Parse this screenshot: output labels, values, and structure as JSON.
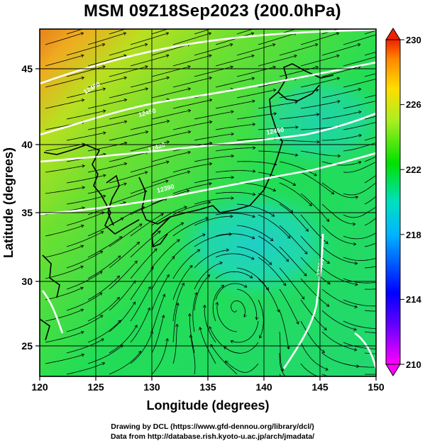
{
  "title": "MSM 09Z18Sep2023 (200.0hPa)",
  "map": {
    "lon_range": [
      120,
      150
    ],
    "lat_range": [
      22.5,
      47.5
    ],
    "x_ticks": [
      "120",
      "125",
      "130",
      "135",
      "140",
      "145",
      "150"
    ],
    "y_ticks": [
      "25",
      "30",
      "35",
      "40",
      "45"
    ],
    "xlabel": "Longitude (degrees)",
    "ylabel": "Latitude  (degrees)",
    "contour_labels": [
      "12480",
      "12450",
      "12420",
      "12390",
      "12450",
      "12390"
    ],
    "streamlines": "on"
  },
  "colorbar": {
    "ticks": [
      "230",
      "226",
      "222",
      "218",
      "214",
      "210"
    ],
    "range": [
      210,
      230
    ],
    "colors": [
      "#ff00ff",
      "#0000ff",
      "#00bfff",
      "#00e5a0",
      "#00e000",
      "#aaee22",
      "#ffdd00",
      "#ff8800",
      "#ee2200"
    ]
  },
  "footer": {
    "line1": "Drawing by DCL (https://www.gfd-dennou.org/library/dcl/)",
    "line2": "Data from http://database.rish.kyoto-u.ac.jp/arch/jmadata/"
  }
}
